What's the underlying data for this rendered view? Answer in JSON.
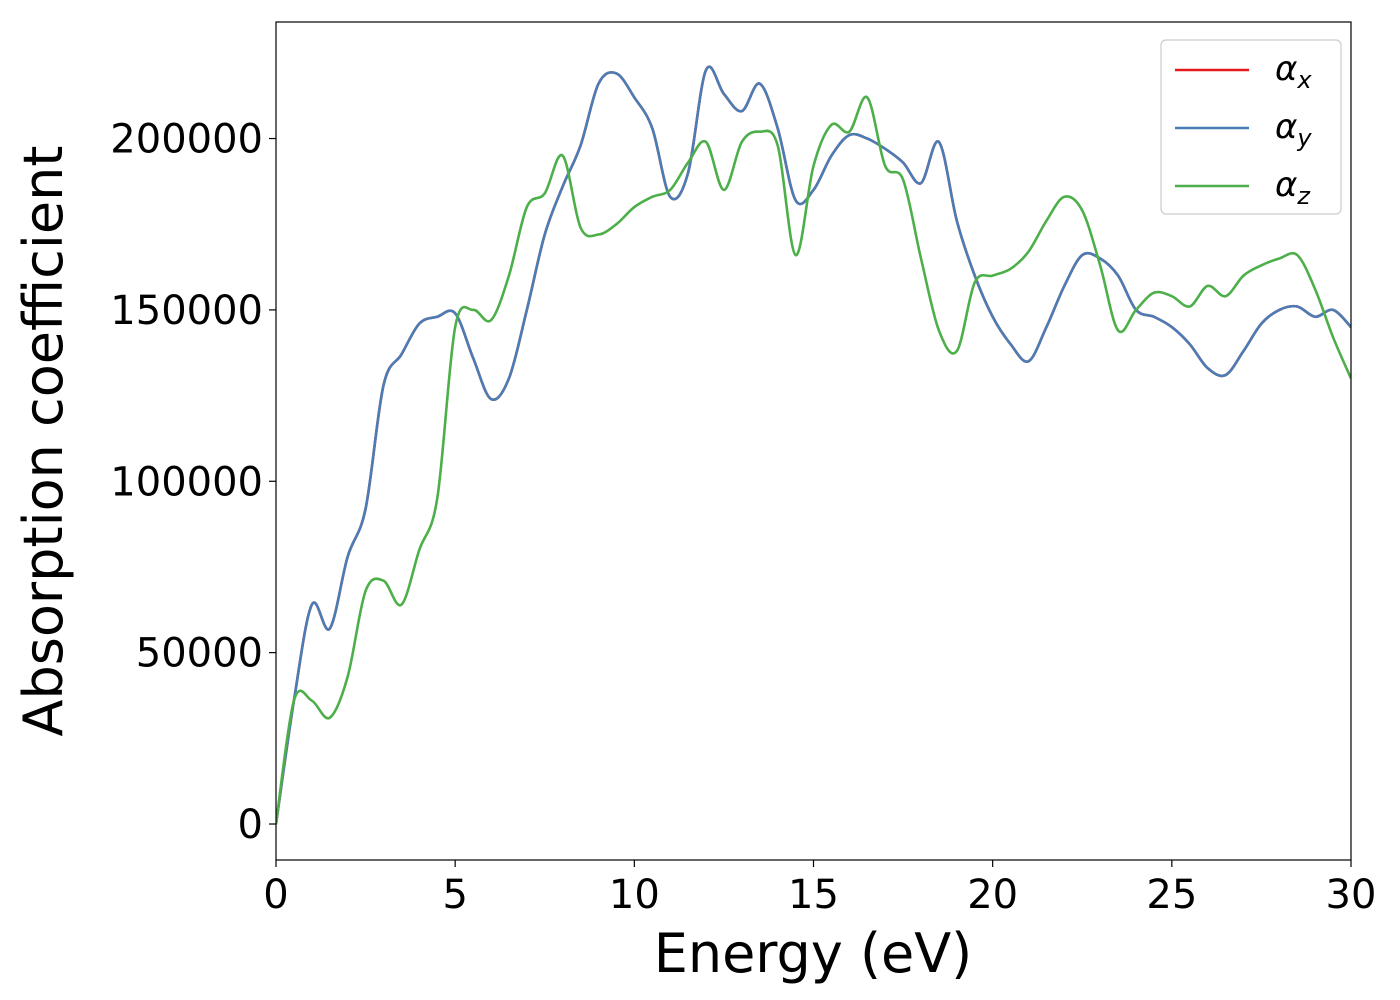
{
  "chart_data": {
    "type": "line",
    "xlabel": "Energy (eV)",
    "ylabel": "Absorption coefficient",
    "x": [
      0,
      0.5,
      1,
      1.5,
      2,
      2.5,
      3,
      3.5,
      4,
      4.5,
      5,
      5.5,
      6,
      6.5,
      7,
      7.5,
      8,
      8.5,
      9,
      9.5,
      10,
      10.5,
      11,
      11.5,
      12,
      12.5,
      13,
      13.5,
      14,
      14.5,
      15,
      15.5,
      16,
      16.5,
      17,
      17.5,
      18,
      18.5,
      19,
      19.5,
      20,
      20.5,
      21,
      21.5,
      22,
      22.5,
      23,
      23.5,
      24,
      24.5,
      25,
      25.5,
      26,
      26.5,
      27,
      27.5,
      28,
      28.5,
      29,
      29.5,
      30
    ],
    "series": [
      {
        "name": "αx",
        "color": "#e41a1c",
        "values": [
          0,
          36000,
          64000,
          57000,
          78000,
          92000,
          128000,
          137000,
          146000,
          148000,
          149000,
          136000,
          124000,
          130000,
          150000,
          172000,
          186000,
          198000,
          216000,
          219000,
          212000,
          203000,
          183000,
          190000,
          220000,
          213000,
          208000,
          216000,
          203000,
          182000,
          185000,
          195000,
          201000,
          200000,
          197000,
          193000,
          187000,
          199000,
          176000,
          160000,
          148000,
          140000,
          135000,
          145000,
          157000,
          166000,
          165000,
          160000,
          150000,
          148000,
          145000,
          140000,
          133000,
          131000,
          138000,
          146000,
          150000,
          151000,
          148000,
          150000,
          145000
        ]
      },
      {
        "name": "αy",
        "color": "#4a7db5",
        "values": [
          0,
          36000,
          64000,
          57000,
          78000,
          92000,
          128000,
          137000,
          146000,
          148000,
          149000,
          136000,
          124000,
          130000,
          150000,
          172000,
          186000,
          198000,
          216000,
          219000,
          212000,
          203000,
          183000,
          190000,
          220000,
          213000,
          208000,
          216000,
          203000,
          182000,
          185000,
          195000,
          201000,
          200000,
          197000,
          193000,
          187000,
          199000,
          176000,
          160000,
          148000,
          140000,
          135000,
          145000,
          157000,
          166000,
          165000,
          160000,
          150000,
          148000,
          145000,
          140000,
          133000,
          131000,
          138000,
          146000,
          150000,
          151000,
          148000,
          150000,
          145000
        ]
      },
      {
        "name": "αz",
        "color": "#4daf4a",
        "values": [
          0,
          36000,
          36000,
          31000,
          43000,
          68000,
          71000,
          64000,
          80000,
          95000,
          145000,
          150000,
          147000,
          160000,
          180000,
          184000,
          195000,
          174000,
          172000,
          175000,
          180000,
          183000,
          185000,
          193000,
          199000,
          185000,
          199000,
          202000,
          198000,
          166000,
          192000,
          204000,
          202000,
          212000,
          192000,
          188000,
          165000,
          144000,
          138000,
          158000,
          160000,
          162000,
          167000,
          176000,
          183000,
          179000,
          163000,
          144000,
          150000,
          155000,
          154000,
          151000,
          157000,
          154000,
          160000,
          163000,
          165000,
          166000,
          156000,
          142000,
          130000
        ]
      }
    ],
    "xlim": [
      0,
      30
    ],
    "xticks": [
      0,
      5,
      10,
      15,
      20,
      25,
      30
    ],
    "ylim": [
      -10500,
      234000
    ],
    "yticks": [
      0,
      50000,
      100000,
      150000,
      200000
    ],
    "legend": "upper right",
    "grid": false
  }
}
